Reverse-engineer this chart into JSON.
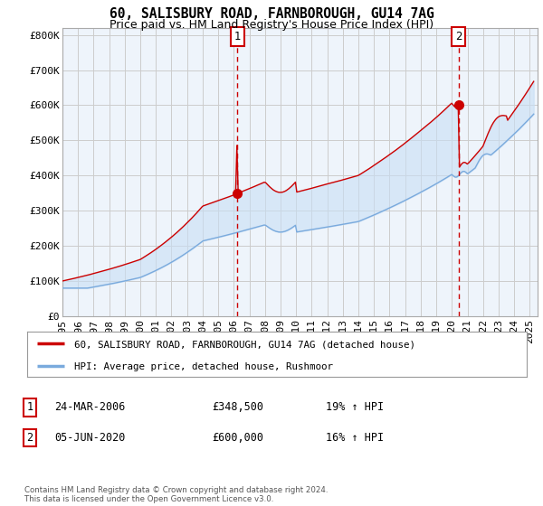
{
  "title": "60, SALISBURY ROAD, FARNBOROUGH, GU14 7AG",
  "subtitle": "Price paid vs. HM Land Registry's House Price Index (HPI)",
  "ylim": [
    0,
    820000
  ],
  "xlim_start": 1995.0,
  "xlim_end": 2025.5,
  "sale1_x": 2006.23,
  "sale1_y": 348500,
  "sale2_x": 2020.42,
  "sale2_y": 600000,
  "red_line_color": "#cc0000",
  "blue_line_color": "#7aaadd",
  "fill_color": "#ddeeff",
  "background_color": "#ffffff",
  "grid_color": "#cccccc",
  "legend_line1": "60, SALISBURY ROAD, FARNBOROUGH, GU14 7AG (detached house)",
  "legend_line2": "HPI: Average price, detached house, Rushmoor",
  "table_row1": [
    "1",
    "24-MAR-2006",
    "£348,500",
    "19% ↑ HPI"
  ],
  "table_row2": [
    "2",
    "05-JUN-2020",
    "£600,000",
    "16% ↑ HPI"
  ],
  "footer": "Contains HM Land Registry data © Crown copyright and database right 2024.\nThis data is licensed under the Open Government Licence v3.0.",
  "title_fontsize": 10.5,
  "subtitle_fontsize": 9,
  "tick_fontsize": 8
}
